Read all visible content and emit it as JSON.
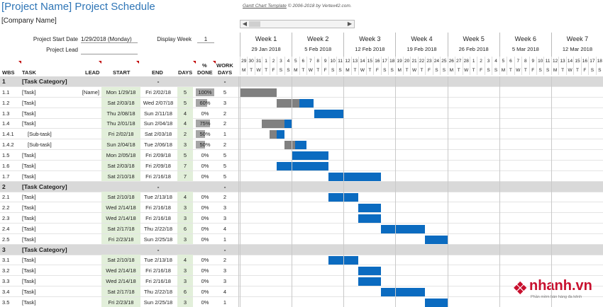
{
  "header": {
    "title": "[Project Name] Project Schedule",
    "company": "[Company Name]",
    "credit_link": "Gantt Chart Template",
    "credit_rest": "© 2006-2018 by Vertex42.com."
  },
  "settings": {
    "start_label": "Project Start Date",
    "start_value": "1/29/2018 (Monday)",
    "display_week_label": "Display Week",
    "display_week_value": "1",
    "lead_label": "Project Lead"
  },
  "columns": {
    "wbs": "WBS",
    "task": "TASK",
    "lead": "LEAD",
    "start": "START",
    "end": "END",
    "days": "DAYS",
    "done_line1": "%",
    "done_line2": "DONE",
    "work_line1": "WORK",
    "work_line2": "DAYS"
  },
  "weeks": [
    {
      "name": "Week 1",
      "date": "29 Jan 2018"
    },
    {
      "name": "Week 2",
      "date": "5 Feb 2018"
    },
    {
      "name": "Week 3",
      "date": "12 Feb 2018"
    },
    {
      "name": "Week 4",
      "date": "19 Feb 2018"
    },
    {
      "name": "Week 5",
      "date": "26 Feb 2018"
    },
    {
      "name": "Week 6",
      "date": "5 Mar 2018"
    },
    {
      "name": "Week 7",
      "date": "12 Mar 2018"
    }
  ],
  "day_numbers": [
    "29",
    "30",
    "31",
    "1",
    "2",
    "3",
    "4",
    "5",
    "6",
    "7",
    "8",
    "9",
    "10",
    "11",
    "12",
    "13",
    "14",
    "15",
    "16",
    "17",
    "18",
    "19",
    "20",
    "21",
    "22",
    "23",
    "24",
    "25",
    "26",
    "27",
    "28",
    "1",
    "2",
    "3",
    "4",
    "5",
    "6",
    "7",
    "8",
    "9",
    "10",
    "11",
    "12",
    "13",
    "14",
    "15",
    "16",
    "17",
    "18"
  ],
  "day_letters": [
    "M",
    "T",
    "W",
    "T",
    "F",
    "S",
    "S"
  ],
  "rows": [
    {
      "type": "cat",
      "wbs": "1",
      "task": "[Task Category]",
      "lead": "",
      "start": "",
      "end": "-",
      "days": "",
      "done": "",
      "work": "-"
    },
    {
      "type": "task",
      "wbs": "1.1",
      "task": "[Task]",
      "lead": "[Name]",
      "start": "Mon 1/29/18",
      "end": "Fri 2/02/18",
      "days": "5",
      "done": "100%",
      "done_frac": 1.0,
      "work": "5",
      "gantt_start": 0,
      "gantt_days": 5
    },
    {
      "type": "task",
      "wbs": "1.2",
      "task": "[Task]",
      "lead": "",
      "start": "Sat 2/03/18",
      "end": "Wed 2/07/18",
      "days": "5",
      "done": "60%",
      "done_frac": 0.6,
      "work": "3",
      "gantt_start": 5,
      "gantt_days": 5
    },
    {
      "type": "task",
      "wbs": "1.3",
      "task": "[Task]",
      "lead": "",
      "start": "Thu 2/08/18",
      "end": "Sun 2/11/18",
      "days": "4",
      "done": "0%",
      "done_frac": 0,
      "work": "2",
      "gantt_start": 10,
      "gantt_days": 4
    },
    {
      "type": "task",
      "wbs": "1.4",
      "task": "[Task]",
      "lead": "",
      "start": "Thu 2/01/18",
      "end": "Sun 2/04/18",
      "days": "4",
      "done": "75%",
      "done_frac": 0.75,
      "work": "2",
      "gantt_start": 3,
      "gantt_days": 4
    },
    {
      "type": "task",
      "wbs": "1.4.1",
      "task": "[Sub-task]",
      "indent": true,
      "lead": "",
      "start": "Fri 2/02/18",
      "end": "Sat 2/03/18",
      "days": "2",
      "done": "50%",
      "done_frac": 0.5,
      "work": "1",
      "gantt_start": 4,
      "gantt_days": 2
    },
    {
      "type": "task",
      "wbs": "1.4.2",
      "task": "[Sub-task]",
      "indent": true,
      "lead": "",
      "start": "Sun 2/04/18",
      "end": "Tue 2/06/18",
      "days": "3",
      "done": "50%",
      "done_frac": 0.5,
      "work": "2",
      "gantt_start": 6,
      "gantt_days": 3
    },
    {
      "type": "task",
      "wbs": "1.5",
      "task": "[Task]",
      "lead": "",
      "start": "Mon 2/05/18",
      "end": "Fri 2/09/18",
      "days": "5",
      "done": "0%",
      "done_frac": 0,
      "work": "5",
      "gantt_start": 7,
      "gantt_days": 5
    },
    {
      "type": "task",
      "wbs": "1.6",
      "task": "[Task]",
      "lead": "",
      "start": "Sat 2/03/18",
      "end": "Fri 2/09/18",
      "days": "7",
      "done": "0%",
      "done_frac": 0,
      "work": "5",
      "gantt_start": 5,
      "gantt_days": 7
    },
    {
      "type": "task",
      "wbs": "1.7",
      "task": "[Task]",
      "lead": "",
      "start": "Sat 2/10/18",
      "end": "Fri 2/16/18",
      "days": "7",
      "done": "0%",
      "done_frac": 0,
      "work": "5",
      "gantt_start": 12,
      "gantt_days": 7
    },
    {
      "type": "cat",
      "wbs": "2",
      "task": "[Task Category]",
      "lead": "",
      "start": "",
      "end": "-",
      "days": "",
      "done": "",
      "work": "-"
    },
    {
      "type": "task",
      "wbs": "2.1",
      "task": "[Task]",
      "lead": "",
      "start": "Sat 2/10/18",
      "end": "Tue 2/13/18",
      "days": "4",
      "done": "0%",
      "done_frac": 0,
      "work": "2",
      "gantt_start": 12,
      "gantt_days": 4
    },
    {
      "type": "task",
      "wbs": "2.2",
      "task": "[Task]",
      "lead": "",
      "start": "Wed 2/14/18",
      "end": "Fri 2/16/18",
      "days": "3",
      "done": "0%",
      "done_frac": 0,
      "work": "3",
      "gantt_start": 16,
      "gantt_days": 3
    },
    {
      "type": "task",
      "wbs": "2.3",
      "task": "[Task]",
      "lead": "",
      "start": "Wed 2/14/18",
      "end": "Fri 2/16/18",
      "days": "3",
      "done": "0%",
      "done_frac": 0,
      "work": "3",
      "gantt_start": 16,
      "gantt_days": 3
    },
    {
      "type": "task",
      "wbs": "2.4",
      "task": "[Task]",
      "lead": "",
      "start": "Sat 2/17/18",
      "end": "Thu 2/22/18",
      "days": "6",
      "done": "0%",
      "done_frac": 0,
      "work": "4",
      "gantt_start": 19,
      "gantt_days": 6
    },
    {
      "type": "task",
      "wbs": "2.5",
      "task": "[Task]",
      "lead": "",
      "start": "Fri 2/23/18",
      "end": "Sun 2/25/18",
      "days": "3",
      "done": "0%",
      "done_frac": 0,
      "work": "1",
      "gantt_start": 25,
      "gantt_days": 3
    },
    {
      "type": "cat",
      "wbs": "3",
      "task": "[Task Category]",
      "lead": "",
      "start": "",
      "end": "-",
      "days": "",
      "done": "",
      "work": "-"
    },
    {
      "type": "task",
      "wbs": "3.1",
      "task": "[Task]",
      "lead": "",
      "start": "Sat 2/10/18",
      "end": "Tue 2/13/18",
      "days": "4",
      "done": "0%",
      "done_frac": 0,
      "work": "2",
      "gantt_start": 12,
      "gantt_days": 4
    },
    {
      "type": "task",
      "wbs": "3.2",
      "task": "[Task]",
      "lead": "",
      "start": "Wed 2/14/18",
      "end": "Fri 2/16/18",
      "days": "3",
      "done": "0%",
      "done_frac": 0,
      "work": "3",
      "gantt_start": 16,
      "gantt_days": 3
    },
    {
      "type": "task",
      "wbs": "3.3",
      "task": "[Task]",
      "lead": "",
      "start": "Wed 2/14/18",
      "end": "Fri 2/16/18",
      "days": "3",
      "done": "0%",
      "done_frac": 0,
      "work": "3",
      "gantt_start": 16,
      "gantt_days": 3
    },
    {
      "type": "task",
      "wbs": "3.4",
      "task": "[Task]",
      "lead": "",
      "start": "Sat 2/17/18",
      "end": "Thu 2/22/18",
      "days": "6",
      "done": "0%",
      "done_frac": 0,
      "work": "4",
      "gantt_start": 19,
      "gantt_days": 6
    },
    {
      "type": "task",
      "wbs": "3.5",
      "task": "[Task]",
      "lead": "",
      "start": "Fri 2/23/18",
      "end": "Sun 2/25/18",
      "days": "3",
      "done": "0%",
      "done_frac": 0,
      "work": "1",
      "gantt_start": 25,
      "gantt_days": 3
    }
  ],
  "colors": {
    "title": "#2e75b6",
    "category_bg": "#d9d9d9",
    "start_bg": "#e2efda",
    "bar_done": "#808080",
    "bar_todo": "#0b6bc0",
    "logo": "#c8102e"
  },
  "logo": {
    "word": "nhanh.vn",
    "tagline": "Phần mềm bán hàng đa kênh"
  }
}
